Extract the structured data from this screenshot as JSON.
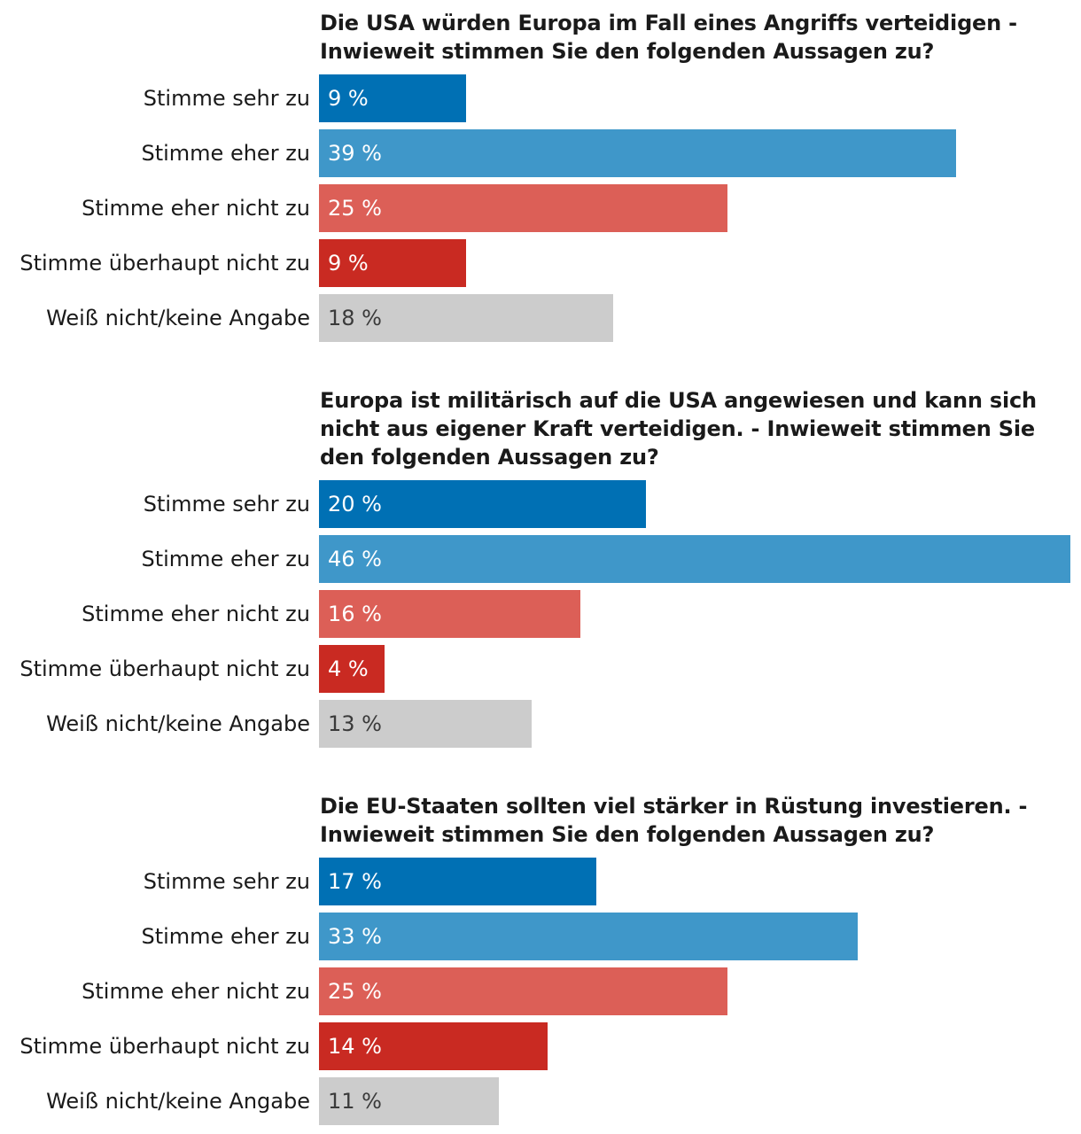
{
  "chart_data": [
    {
      "type": "bar",
      "orientation": "horizontal",
      "title": "Die USA würden Europa im Fall eines Angriffs verteidigen - Inwieweit stimmen Sie den folgenden Aussagen zu?",
      "categories": [
        "Stimme sehr zu",
        "Stimme eher zu",
        "Stimme eher nicht zu",
        "Stimme überhaupt nicht zu",
        "Weiß nicht/keine Angabe"
      ],
      "values": [
        9,
        39,
        25,
        9,
        18
      ],
      "value_labels": [
        "9 %",
        "39 %",
        "25 %",
        "9 %",
        "18 %"
      ],
      "unit": "%",
      "xlim": [
        0,
        46
      ]
    },
    {
      "type": "bar",
      "orientation": "horizontal",
      "title": "Europa ist militärisch auf die USA angewiesen und kann sich nicht aus eigener Kraft verteidigen. - Inwieweit stimmen Sie den folgenden Aussagen zu?",
      "categories": [
        "Stimme sehr zu",
        "Stimme eher zu",
        "Stimme eher nicht zu",
        "Stimme überhaupt nicht zu",
        "Weiß nicht/keine Angabe"
      ],
      "values": [
        20,
        46,
        16,
        4,
        13
      ],
      "value_labels": [
        "20 %",
        "46 %",
        "16 %",
        "4 %",
        "13 %"
      ],
      "unit": "%",
      "xlim": [
        0,
        46
      ]
    },
    {
      "type": "bar",
      "orientation": "horizontal",
      "title": "Die EU-Staaten sollten viel stärker in Rüstung investieren. - Inwieweit stimmen Sie den folgenden Aussagen zu?",
      "categories": [
        "Stimme sehr zu",
        "Stimme eher zu",
        "Stimme eher nicht zu",
        "Stimme überhaupt nicht zu",
        "Weiß nicht/keine Angabe"
      ],
      "values": [
        17,
        33,
        25,
        14,
        11
      ],
      "value_labels": [
        "17 %",
        "33 %",
        "25 %",
        "14 %",
        "11 %"
      ],
      "unit": "%",
      "xlim": [
        0,
        46
      ]
    }
  ],
  "colors": [
    "#0070b4",
    "#3f97c9",
    "#dc5f57",
    "#c92a22",
    "#cccccc"
  ]
}
